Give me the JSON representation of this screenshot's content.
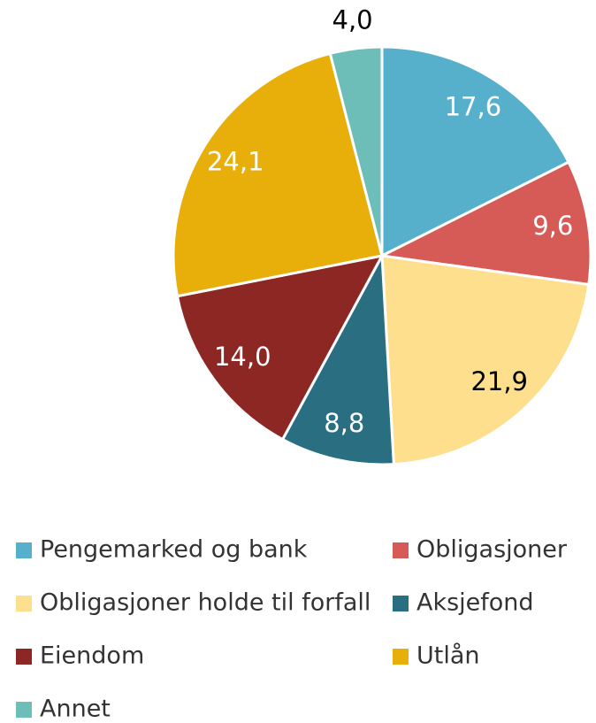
{
  "chart_data": {
    "type": "pie",
    "categories": [
      "Pengemarked og bank",
      "Obligasjoner",
      "Obligasjoner holde til forfall",
      "Aksjefond",
      "Eiendom",
      "Utlån",
      "Annet"
    ],
    "values": [
      17.6,
      9.6,
      21.9,
      8.8,
      14.0,
      24.1,
      4.0
    ],
    "value_labels": [
      "17,6",
      "9,6",
      "21,9",
      "8,8",
      "14,0",
      "24,1",
      "4,0"
    ],
    "colors": [
      "#56b0cc",
      "#d65a55",
      "#fddf8e",
      "#2a6e82",
      "#8c2723",
      "#e8ae0a",
      "#6dbdb8"
    ],
    "legend": "bottom"
  }
}
